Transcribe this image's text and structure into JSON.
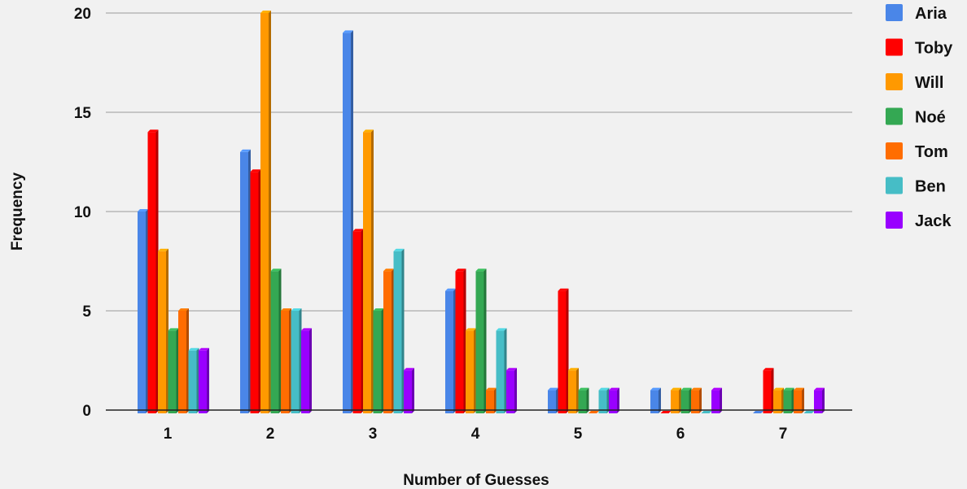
{
  "chart_data": {
    "type": "bar",
    "xlabel": "Number of Guesses",
    "ylabel": "Frequency",
    "categories": [
      "1",
      "2",
      "3",
      "4",
      "5",
      "6",
      "7"
    ],
    "ylim": [
      0,
      20
    ],
    "yticks": [
      0,
      5,
      10,
      15,
      20
    ],
    "grid": true,
    "legend_position": "right",
    "series": [
      {
        "name": "Aria",
        "color": "#4a86e8",
        "values": [
          10,
          13,
          19,
          6,
          1,
          1,
          0
        ]
      },
      {
        "name": "Toby",
        "color": "#ff0000",
        "values": [
          14,
          12,
          9,
          7,
          6,
          0,
          2
        ]
      },
      {
        "name": "Will",
        "color": "#ff9900",
        "values": [
          8,
          20,
          14,
          4,
          2,
          1,
          1
        ]
      },
      {
        "name": "Noé",
        "color": "#34a853",
        "values": [
          4,
          7,
          5,
          7,
          1,
          1,
          1
        ]
      },
      {
        "name": "Tom",
        "color": "#ff6d01",
        "values": [
          5,
          5,
          7,
          1,
          0,
          1,
          1
        ]
      },
      {
        "name": "Ben",
        "color": "#46bdc6",
        "values": [
          3,
          5,
          8,
          4,
          1,
          0,
          0
        ]
      },
      {
        "name": "Jack",
        "color": "#9900ff",
        "values": [
          3,
          4,
          2,
          2,
          1,
          1,
          1
        ]
      }
    ]
  }
}
